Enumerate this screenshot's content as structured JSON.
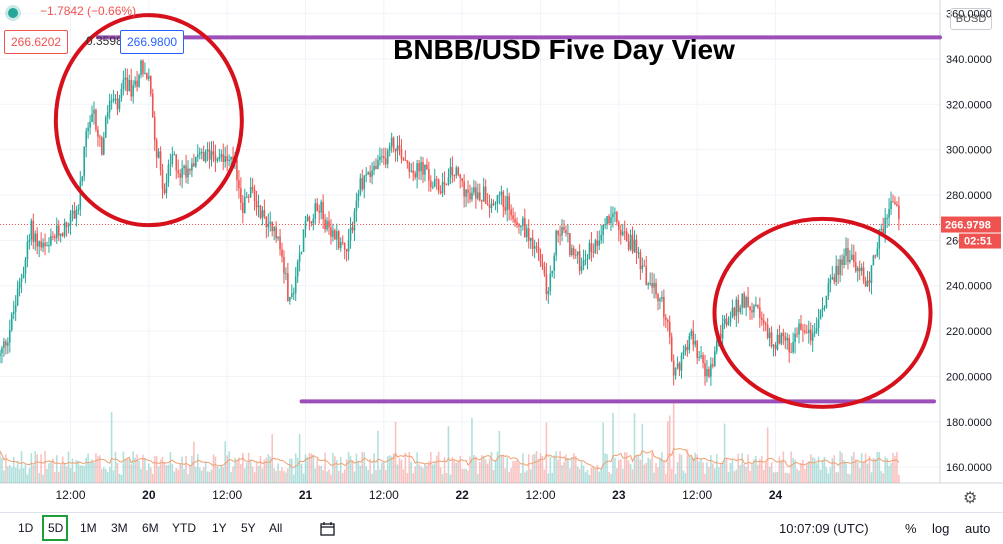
{
  "header": {
    "change": "−1.7842 (−0.66%)",
    "bid": "266.6202",
    "spread": "0.3598",
    "ask": "266.9800",
    "currency": "BUSD"
  },
  "price_axis": {
    "last_price": "266.9798",
    "countdown": "02:51"
  },
  "bottom_bar": {
    "timeframes": [
      "1D",
      "5D",
      "1M",
      "3M",
      "6M",
      "YTD",
      "1Y",
      "5Y",
      "All"
    ],
    "active_timeframe": "5D",
    "clock": "10:07:09 (UTC)",
    "percent": "%",
    "log": "log",
    "auto": "auto"
  },
  "colors": {
    "up": "#26a69a",
    "down": "#ef5350",
    "annotation_line": "#9c4fb8",
    "annotation_circle": "#d6111c"
  },
  "chart_data": {
    "type": "candlestick",
    "title": "BNBB/USD Five Day View",
    "x_tick_labels": [
      "12:00",
      "20",
      "12:00",
      "21",
      "12:00",
      "22",
      "12:00",
      "23",
      "12:00",
      "24"
    ],
    "y_tick_labels": [
      "160.0000",
      "180.0000",
      "200.0000",
      "220.0000",
      "240.0000",
      "260.0000",
      "280.0000",
      "300.0000",
      "320.0000",
      "340.0000",
      "360.0000"
    ],
    "ylim": [
      153,
      366
    ],
    "x_domain": [
      0,
      120
    ],
    "x_tick_positions": [
      9,
      19,
      29,
      39,
      49,
      59,
      69,
      79,
      89,
      99
    ],
    "close_path": [
      [
        0,
        209
      ],
      [
        1,
        218
      ],
      [
        2,
        232
      ],
      [
        3,
        248
      ],
      [
        4,
        265
      ],
      [
        5,
        258
      ],
      [
        6,
        255
      ],
      [
        7,
        262
      ],
      [
        8,
        265
      ],
      [
        9,
        270
      ],
      [
        10,
        275
      ],
      [
        11,
        305
      ],
      [
        12,
        315
      ],
      [
        13,
        300
      ],
      [
        14,
        322
      ],
      [
        15,
        318
      ],
      [
        16,
        330
      ],
      [
        17,
        325
      ],
      [
        18,
        338
      ],
      [
        19,
        330
      ],
      [
        20,
        300
      ],
      [
        21,
        282
      ],
      [
        22,
        297
      ],
      [
        23,
        290
      ],
      [
        24,
        292
      ],
      [
        25,
        298
      ],
      [
        26,
        295
      ],
      [
        27,
        300
      ],
      [
        28,
        298
      ],
      [
        29,
        295
      ],
      [
        30,
        292
      ],
      [
        31,
        275
      ],
      [
        32,
        282
      ],
      [
        33,
        275
      ],
      [
        34,
        268
      ],
      [
        35,
        268
      ],
      [
        36,
        252
      ],
      [
        37,
        232
      ],
      [
        38,
        248
      ],
      [
        39,
        268
      ],
      [
        40,
        272
      ],
      [
        41,
        275
      ],
      [
        42,
        262
      ],
      [
        43,
        262
      ],
      [
        44,
        256
      ],
      [
        45,
        268
      ],
      [
        46,
        285
      ],
      [
        47,
        290
      ],
      [
        48,
        292
      ],
      [
        49,
        295
      ],
      [
        50,
        303
      ],
      [
        51,
        300
      ],
      [
        52,
        295
      ],
      [
        53,
        290
      ],
      [
        54,
        292
      ],
      [
        55,
        285
      ],
      [
        56,
        283
      ],
      [
        57,
        288
      ],
      [
        58,
        290
      ],
      [
        59,
        285
      ],
      [
        60,
        278
      ],
      [
        61,
        282
      ],
      [
        62,
        280
      ],
      [
        63,
        276
      ],
      [
        64,
        278
      ],
      [
        65,
        275
      ],
      [
        66,
        270
      ],
      [
        67,
        265
      ],
      [
        68,
        260
      ],
      [
        69,
        250
      ],
      [
        70,
        235
      ],
      [
        71,
        262
      ],
      [
        72,
        265
      ],
      [
        73,
        255
      ],
      [
        74,
        250
      ],
      [
        75,
        255
      ],
      [
        76,
        258
      ],
      [
        77,
        268
      ],
      [
        78,
        272
      ],
      [
        79,
        265
      ],
      [
        80,
        260
      ],
      [
        81,
        258
      ],
      [
        82,
        248
      ],
      [
        83,
        240
      ],
      [
        84,
        235
      ],
      [
        85,
        228
      ],
      [
        86,
        200
      ],
      [
        87,
        208
      ],
      [
        88,
        218
      ],
      [
        89,
        212
      ],
      [
        90,
        200
      ],
      [
        91,
        205
      ],
      [
        92,
        220
      ],
      [
        93,
        225
      ],
      [
        94,
        230
      ],
      [
        95,
        234
      ],
      [
        96,
        232
      ],
      [
        97,
        225
      ],
      [
        98,
        218
      ],
      [
        99,
        215
      ],
      [
        100,
        218
      ],
      [
        101,
        210
      ],
      [
        102,
        222
      ],
      [
        103,
        220
      ],
      [
        104,
        218
      ],
      [
        105,
        230
      ],
      [
        106,
        240
      ],
      [
        107,
        248
      ],
      [
        108,
        255
      ],
      [
        109,
        250
      ],
      [
        110,
        245
      ],
      [
        111,
        242
      ],
      [
        112,
        260
      ],
      [
        113,
        268
      ],
      [
        114,
        278
      ],
      [
        115,
        268
      ]
    ],
    "horizontal_lines": [
      349.5,
      189
    ],
    "volume_style": "bars + moving average"
  }
}
